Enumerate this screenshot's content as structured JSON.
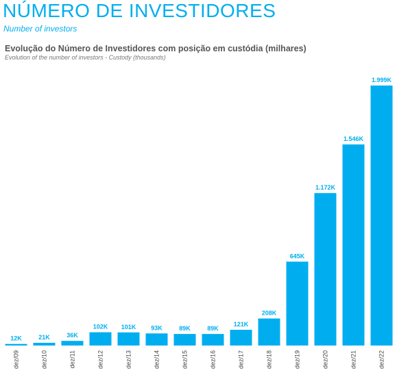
{
  "header": {
    "title": "NÚMERO DE INVESTIDORES",
    "subtitle": "Number of investors"
  },
  "chart_data": {
    "type": "bar",
    "title": "Evolução do Número de Investidores com posição em custódia (milhares)",
    "subtitle": "Evolution of the number of investors - Custody (thousands)",
    "categories": [
      "dez/09",
      "dez/10",
      "dez/11",
      "dez/12",
      "dez/13",
      "dez/14",
      "dez/15",
      "dez/16",
      "dez/17",
      "dez/18",
      "dez/19",
      "dez/20",
      "dez/21",
      "dez/22"
    ],
    "values": [
      12,
      21,
      36,
      102,
      101,
      93,
      89,
      89,
      121,
      208,
      645,
      1172,
      1546,
      1999
    ],
    "data_labels": [
      "12K",
      "21K",
      "36K",
      "102K",
      "101K",
      "93K",
      "89K",
      "89K",
      "121K",
      "208K",
      "645K",
      "1.172K",
      "1.546K",
      "1.999K"
    ],
    "ylim": [
      0,
      1999
    ],
    "grid": false,
    "colors": {
      "bar": "#00aeef",
      "label": "#00aeef",
      "tick": "#444444"
    }
  }
}
